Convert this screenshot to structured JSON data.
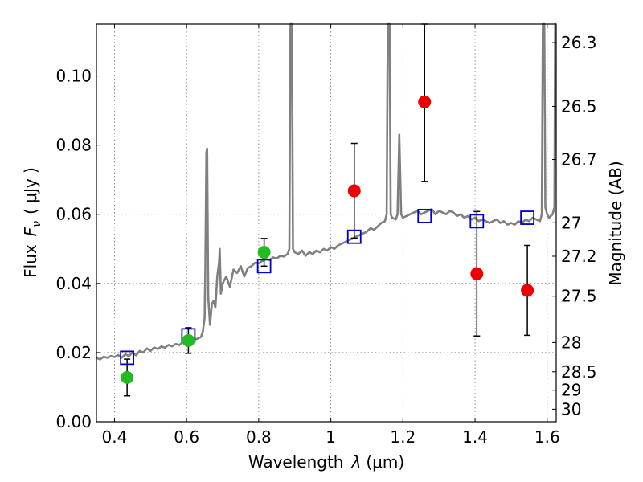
{
  "chart_data": {
    "type": "scatter",
    "xlabel_main": "Wavelength",
    "xlabel_symbol": "λ",
    "xlabel_unit": "(μm)",
    "ylabel_main": "Flux",
    "ylabel_symbol": "F",
    "ylabel_symbol_sub": "ν",
    "ylabel_unit": "( μJy )",
    "ylabel_right": "Magnitude (AB)",
    "xlim": [
      0.35,
      1.625
    ],
    "ylim": [
      0.0,
      0.115
    ],
    "grid": true,
    "x_ticks": [
      {
        "value": 0.4,
        "label": "0.4"
      },
      {
        "value": 0.6,
        "label": "0.6"
      },
      {
        "value": 0.8,
        "label": "0.8"
      },
      {
        "value": 1.0,
        "label": "1"
      },
      {
        "value": 1.2,
        "label": "1.2"
      },
      {
        "value": 1.4,
        "label": "1.4"
      },
      {
        "value": 1.6,
        "label": "1.6"
      }
    ],
    "y_ticks": [
      {
        "value": 0.0,
        "label": "0.00"
      },
      {
        "value": 0.02,
        "label": "0.02"
      },
      {
        "value": 0.04,
        "label": "0.04"
      },
      {
        "value": 0.06,
        "label": "0.06"
      },
      {
        "value": 0.08,
        "label": "0.08"
      },
      {
        "value": 0.1,
        "label": "0.10"
      }
    ],
    "mag_ticks": [
      {
        "mag": 26.3,
        "label": "26.3"
      },
      {
        "mag": 26.5,
        "label": "26.5"
      },
      {
        "mag": 26.7,
        "label": "26.7"
      },
      {
        "mag": 27.0,
        "label": "27"
      },
      {
        "mag": 27.2,
        "label": "27.2"
      },
      {
        "mag": 27.5,
        "label": "27.5"
      },
      {
        "mag": 28.0,
        "label": "28"
      },
      {
        "mag": 28.5,
        "label": "28.5"
      },
      {
        "mag": 29.0,
        "label": "29"
      },
      {
        "mag": 30.0,
        "label": "30"
      }
    ],
    "spectrum": {
      "color": "#808080",
      "points": [
        [
          0.35,
          0.0185
        ],
        [
          0.36,
          0.018
        ],
        [
          0.37,
          0.0188
        ],
        [
          0.38,
          0.0185
        ],
        [
          0.39,
          0.019
        ],
        [
          0.4,
          0.0187
        ],
        [
          0.41,
          0.0193
        ],
        [
          0.42,
          0.0185
        ],
        [
          0.43,
          0.0195
        ],
        [
          0.44,
          0.019
        ],
        [
          0.45,
          0.02
        ],
        [
          0.46,
          0.0192
        ],
        [
          0.47,
          0.0205
        ],
        [
          0.48,
          0.02
        ],
        [
          0.49,
          0.0212
        ],
        [
          0.5,
          0.0205
        ],
        [
          0.51,
          0.0215
        ],
        [
          0.52,
          0.021
        ],
        [
          0.53,
          0.0218
        ],
        [
          0.54,
          0.0214
        ],
        [
          0.55,
          0.0222
        ],
        [
          0.56,
          0.0218
        ],
        [
          0.57,
          0.0225
        ],
        [
          0.58,
          0.0222
        ],
        [
          0.59,
          0.023
        ],
        [
          0.6,
          0.0232
        ],
        [
          0.61,
          0.0235
        ],
        [
          0.62,
          0.0238
        ],
        [
          0.63,
          0.024
        ],
        [
          0.64,
          0.0245
        ],
        [
          0.645,
          0.026
        ],
        [
          0.65,
          0.03
        ],
        [
          0.652,
          0.045
        ],
        [
          0.655,
          0.078
        ],
        [
          0.657,
          0.079
        ],
        [
          0.66,
          0.036
        ],
        [
          0.665,
          0.028
        ],
        [
          0.67,
          0.034
        ],
        [
          0.675,
          0.035
        ],
        [
          0.68,
          0.033
        ],
        [
          0.685,
          0.042
        ],
        [
          0.69,
          0.046
        ],
        [
          0.692,
          0.05
        ],
        [
          0.695,
          0.037
        ],
        [
          0.7,
          0.04
        ],
        [
          0.71,
          0.042
        ],
        [
          0.72,
          0.039
        ],
        [
          0.73,
          0.044
        ],
        [
          0.74,
          0.043
        ],
        [
          0.75,
          0.045
        ],
        [
          0.76,
          0.042
        ],
        [
          0.77,
          0.0445
        ],
        [
          0.78,
          0.045
        ],
        [
          0.79,
          0.046
        ],
        [
          0.8,
          0.0458
        ],
        [
          0.81,
          0.0465
        ],
        [
          0.82,
          0.047
        ],
        [
          0.83,
          0.0468
        ],
        [
          0.84,
          0.0475
        ],
        [
          0.85,
          0.0472
        ],
        [
          0.86,
          0.048
        ],
        [
          0.87,
          0.0478
        ],
        [
          0.88,
          0.0485
        ],
        [
          0.885,
          0.05
        ],
        [
          0.888,
          0.115
        ],
        [
          0.892,
          0.115
        ],
        [
          0.895,
          0.05
        ],
        [
          0.9,
          0.049
        ],
        [
          0.91,
          0.0485
        ],
        [
          0.92,
          0.0495
        ],
        [
          0.93,
          0.048
        ],
        [
          0.94,
          0.049
        ],
        [
          0.95,
          0.0485
        ],
        [
          0.96,
          0.0495
        ],
        [
          0.97,
          0.049
        ],
        [
          0.98,
          0.05
        ],
        [
          0.99,
          0.0495
        ],
        [
          1.0,
          0.0505
        ],
        [
          1.01,
          0.05
        ],
        [
          1.02,
          0.051
        ],
        [
          1.03,
          0.0515
        ],
        [
          1.04,
          0.052
        ],
        [
          1.05,
          0.0525
        ],
        [
          1.06,
          0.053
        ],
        [
          1.07,
          0.0535
        ],
        [
          1.08,
          0.054
        ],
        [
          1.09,
          0.0545
        ],
        [
          1.1,
          0.055
        ],
        [
          1.11,
          0.056
        ],
        [
          1.12,
          0.0555
        ],
        [
          1.13,
          0.0565
        ],
        [
          1.14,
          0.0575
        ],
        [
          1.15,
          0.058
        ],
        [
          1.155,
          0.06
        ],
        [
          1.158,
          0.115
        ],
        [
          1.163,
          0.115
        ],
        [
          1.166,
          0.06
        ],
        [
          1.17,
          0.059
        ],
        [
          1.18,
          0.0585
        ],
        [
          1.185,
          0.06
        ],
        [
          1.19,
          0.083
        ],
        [
          1.195,
          0.06
        ],
        [
          1.2,
          0.059
        ],
        [
          1.21,
          0.0595
        ],
        [
          1.22,
          0.06
        ],
        [
          1.23,
          0.0605
        ],
        [
          1.24,
          0.061
        ],
        [
          1.25,
          0.06
        ],
        [
          1.26,
          0.0605
        ],
        [
          1.27,
          0.061
        ],
        [
          1.28,
          0.0615
        ],
        [
          1.29,
          0.06
        ],
        [
          1.3,
          0.061
        ],
        [
          1.31,
          0.0605
        ],
        [
          1.32,
          0.06
        ],
        [
          1.33,
          0.061
        ],
        [
          1.34,
          0.0605
        ],
        [
          1.35,
          0.0595
        ],
        [
          1.36,
          0.06
        ],
        [
          1.37,
          0.059
        ],
        [
          1.38,
          0.0595
        ],
        [
          1.39,
          0.0585
        ],
        [
          1.4,
          0.059
        ],
        [
          1.41,
          0.058
        ],
        [
          1.42,
          0.0585
        ],
        [
          1.43,
          0.058
        ],
        [
          1.44,
          0.0575
        ],
        [
          1.45,
          0.058
        ],
        [
          1.46,
          0.0585
        ],
        [
          1.47,
          0.0575
        ],
        [
          1.48,
          0.058
        ],
        [
          1.49,
          0.057
        ],
        [
          1.5,
          0.0575
        ],
        [
          1.51,
          0.057
        ],
        [
          1.52,
          0.058
        ],
        [
          1.53,
          0.0575
        ],
        [
          1.54,
          0.0585
        ],
        [
          1.55,
          0.058
        ],
        [
          1.56,
          0.059
        ],
        [
          1.57,
          0.0585
        ],
        [
          1.58,
          0.058
        ],
        [
          1.585,
          0.06
        ],
        [
          1.588,
          0.115
        ],
        [
          1.592,
          0.115
        ],
        [
          1.595,
          0.062
        ],
        [
          1.6,
          0.06
        ],
        [
          1.605,
          0.059
        ],
        [
          1.61,
          0.0595
        ],
        [
          1.615,
          0.06
        ],
        [
          1.62,
          0.062
        ],
        [
          1.622,
          0.115
        ],
        [
          1.625,
          0.115
        ]
      ]
    },
    "model_points": {
      "color": "#0000cc",
      "points": [
        [
          0.435,
          0.0185
        ],
        [
          0.605,
          0.025
        ],
        [
          0.815,
          0.045
        ],
        [
          1.065,
          0.0535
        ],
        [
          1.26,
          0.0595
        ],
        [
          1.405,
          0.058
        ],
        [
          1.545,
          0.059
        ]
      ]
    },
    "detections": {
      "color": "#22bb22",
      "points": [
        {
          "x": 0.435,
          "y": 0.0128,
          "yerr": 0.0053
        },
        {
          "x": 0.605,
          "y": 0.0235,
          "yerr": 0.0037
        },
        {
          "x": 0.815,
          "y": 0.049,
          "yerr": 0.004
        }
      ]
    },
    "nondetections": {
      "color": "#ee0000",
      "points": [
        {
          "x": 1.065,
          "y": 0.0668,
          "yerr": 0.0137
        },
        {
          "x": 1.26,
          "y": 0.0925,
          "yerr": 0.023
        },
        {
          "x": 1.405,
          "y": 0.0428,
          "yerr": 0.018
        },
        {
          "x": 1.545,
          "y": 0.038,
          "yerr": 0.013
        }
      ]
    }
  }
}
